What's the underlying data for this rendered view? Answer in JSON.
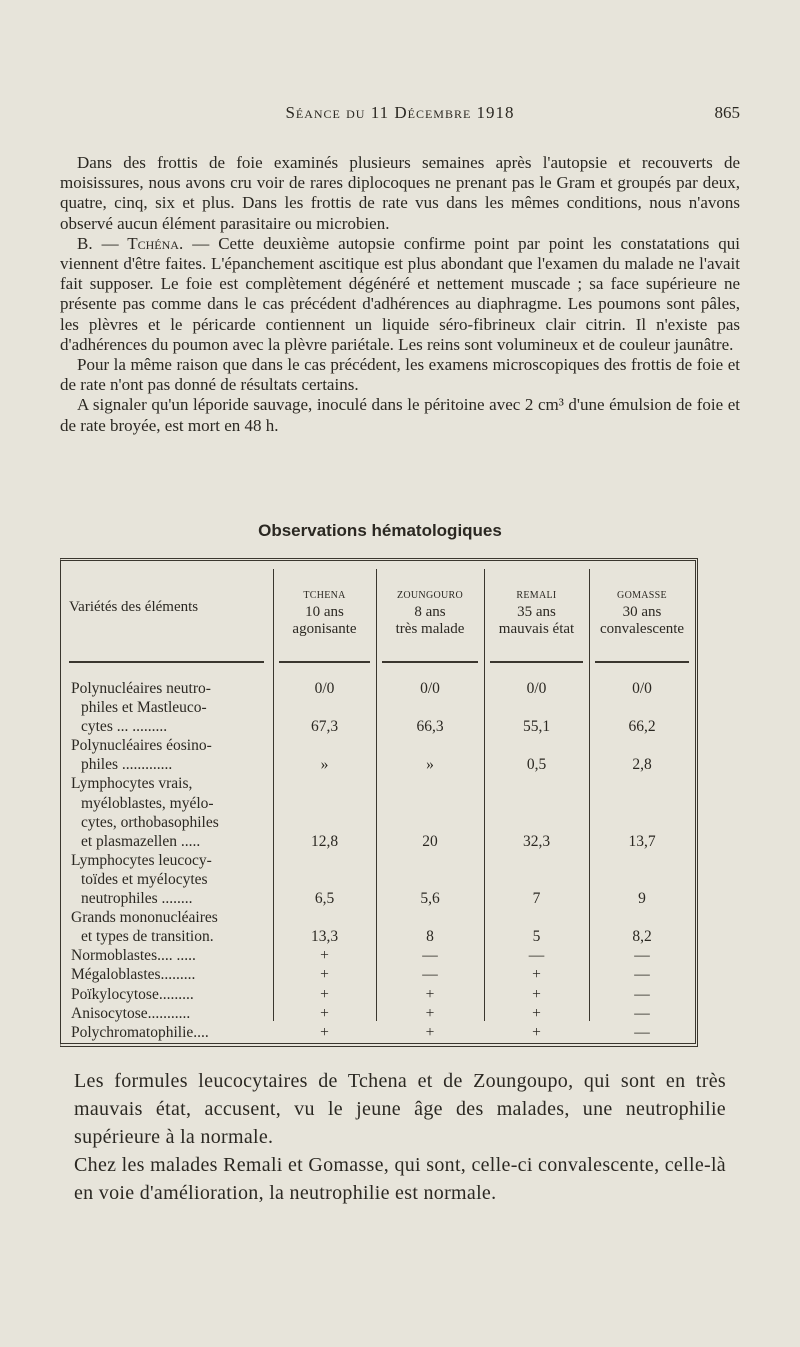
{
  "header": {
    "title": "Séance du 11 Décembre 1918",
    "page": "865"
  },
  "paragraphs": [
    "Dans des frottis de foie examinés plusieurs semaines après l'autopsie et recouverts de moisissures, nous avons cru voir de rares diplocoques ne prenant pas le Gram et groupés par deux, quatre, cinq, six et plus. Dans les frottis de rate vus dans les mêmes conditions, nous n'avons observé aucun élément parasitaire ou microbien.",
    "— Cette deuxième autopsie confirme point par point les constatations qui viennent d'être faites. L'épanchement ascitique est plus abondant que l'examen du malade ne l'avait fait supposer. Le foie est complètement dégénéré et nettement muscade ; sa face supérieure ne présente pas comme dans le cas précédent d'adhérences au diaphragme. Les poumons sont pâles, les plèvres et le péricarde contiennent un liquide séro-fibrineux clair citrin. Il n'existe pas d'adhérences du poumon avec la plèvre pariétale. Les reins sont volumineux et de couleur jaunâtre.",
    "Pour la même raison que dans le cas précédent, les examens microscopiques des frottis de foie et de rate n'ont pas donné de résultats certains.",
    "A signaler qu'un léporide sauvage, inoculé dans le péritoine avec 2 cm³ d'une émulsion de foie et de rate broyée, est mort en 48 h."
  ],
  "para2_lead": "B. — Tchéna.",
  "table": {
    "title": "Observations hématologiques",
    "label_header": "Variétés des éléments",
    "columns": [
      {
        "name": "TCHENA",
        "age": "10 ans",
        "state": "agonisante"
      },
      {
        "name": "ZOUNGOURO",
        "age": "8 ans",
        "state": "très malade"
      },
      {
        "name": "REMALI",
        "age": "35 ans",
        "state": "mauvais état"
      },
      {
        "name": "GOMASSE",
        "age": "30 ans",
        "state": "convalescente"
      }
    ],
    "unit": "0/0",
    "rows": [
      {
        "label_lines": [
          "Polynucléaires neutro-",
          "philes et Mastleuco-",
          "cytes ... ........."
        ],
        "values": [
          "67,3",
          "66,3",
          "55,1",
          "66,2"
        ]
      },
      {
        "label_lines": [
          "Polynucléaires éosino-",
          "philes ............."
        ],
        "values": [
          "»",
          "»",
          "0,5",
          "2,8"
        ]
      },
      {
        "label_lines": [
          "Lymphocytes vrais,",
          "myéloblastes, myélo-",
          "cytes, orthobasophiles",
          "et plasmazellen ....."
        ],
        "values": [
          "12,8",
          "20",
          "32,3",
          "13,7"
        ]
      },
      {
        "label_lines": [
          "Lymphocytes leucocy-",
          "toïdes et myélocytes",
          "neutrophiles ........"
        ],
        "values": [
          "6,5",
          "5,6",
          "7",
          "9"
        ]
      },
      {
        "label_lines": [
          "Grands mononucléaires",
          "et types de transition."
        ],
        "values": [
          "13,3",
          "8",
          "5",
          "8,2"
        ]
      },
      {
        "label_lines": [
          "Normoblastes.... ....."
        ],
        "values": [
          "+",
          "—",
          "—",
          "—"
        ]
      },
      {
        "label_lines": [
          "Mégaloblastes........."
        ],
        "values": [
          "+",
          "—",
          "+",
          "—"
        ]
      },
      {
        "label_lines": [
          "Poïkylocytose........."
        ],
        "values": [
          "+",
          "+",
          "+",
          "—"
        ]
      },
      {
        "label_lines": [
          "Anisocytose..........."
        ],
        "values": [
          "+",
          "+",
          "+",
          "—"
        ]
      },
      {
        "label_lines": [
          "Polychromatophilie...."
        ],
        "values": [
          "+",
          "+",
          "+",
          "—"
        ]
      }
    ]
  },
  "conclusion": [
    "Les formules leucocytaires de Tchena et de Zoungoupo, qui sont en très mauvais état, accusent, vu le jeune âge des malades, une neutrophilie supérieure à la normale.",
    "Chez les malades Remali et Gomasse, qui sont, celle-ci convalescente, celle-là en voie d'amélioration, la neutrophilie est normale."
  ]
}
